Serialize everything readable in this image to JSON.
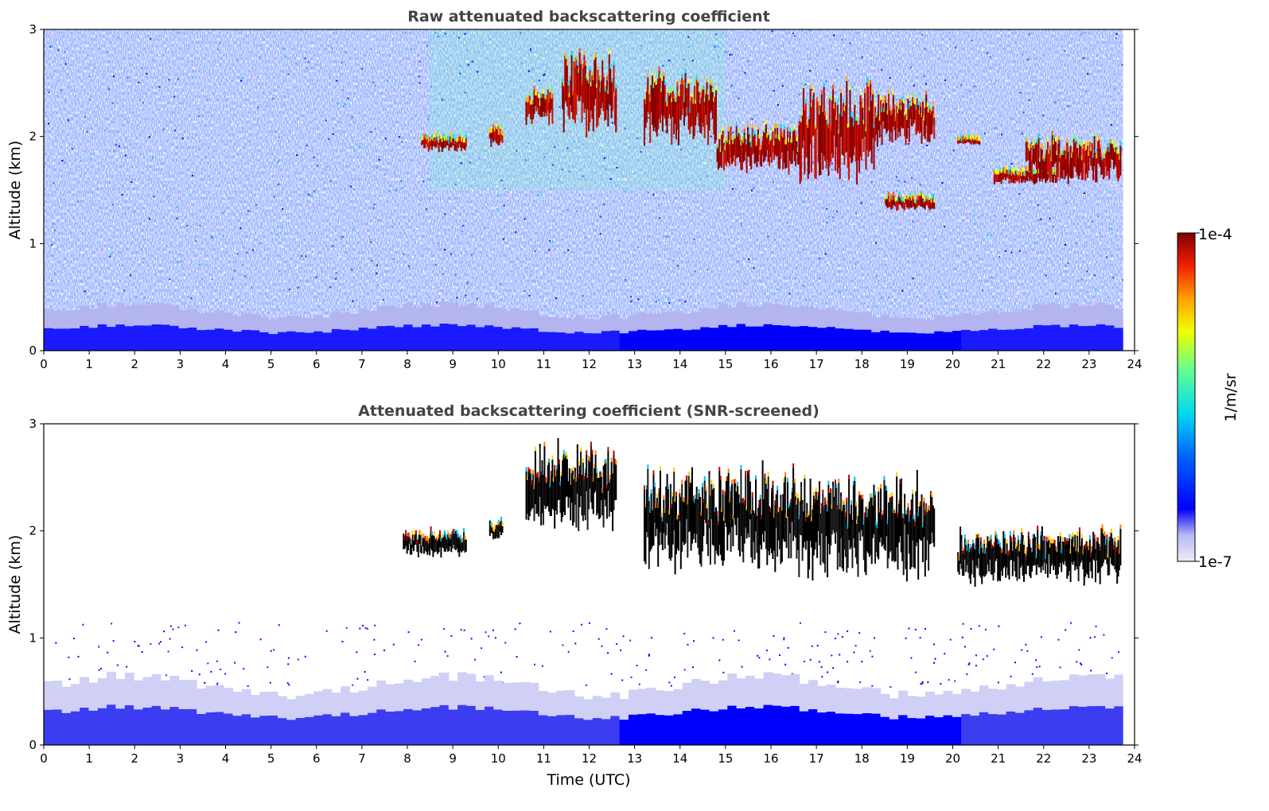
{
  "chart_data": [
    {
      "type": "heatmap",
      "title": "Raw attenuated backscattering coefficient",
      "ylabel": "Altitude (km)",
      "xlabel": "",
      "xlim": [
        0,
        24
      ],
      "ylim": [
        0,
        3
      ],
      "xticks": [
        "0",
        "1",
        "2",
        "3",
        "4",
        "5",
        "6",
        "7",
        "8",
        "9",
        "10",
        "11",
        "12",
        "13",
        "14",
        "15",
        "16",
        "17",
        "18",
        "19",
        "20",
        "21",
        "22",
        "23",
        "24"
      ],
      "yticks": [
        "0",
        "1",
        "2",
        "3"
      ],
      "data_end_time": 23.75,
      "features": [
        {
          "kind": "boundary_layer",
          "start": 0,
          "end": 23.75,
          "top_km": 0.4
        },
        {
          "kind": "cloud",
          "start": 8.3,
          "end": 9.3,
          "base_km": 1.85,
          "top_km": 2.0
        },
        {
          "kind": "cloud",
          "start": 9.8,
          "end": 10.1,
          "base_km": 1.9,
          "top_km": 2.1
        },
        {
          "kind": "cloud",
          "start": 10.6,
          "end": 11.2,
          "base_km": 2.1,
          "top_km": 2.45
        },
        {
          "kind": "cloud",
          "start": 11.4,
          "end": 12.6,
          "base_km": 2.0,
          "top_km": 2.8
        },
        {
          "kind": "cloud",
          "start": 13.2,
          "end": 14.8,
          "base_km": 1.9,
          "top_km": 2.6
        },
        {
          "kind": "cloud",
          "start": 14.8,
          "end": 16.6,
          "base_km": 1.65,
          "top_km": 2.1
        },
        {
          "kind": "cloud",
          "start": 16.6,
          "end": 18.3,
          "base_km": 1.55,
          "top_km": 2.5
        },
        {
          "kind": "cloud",
          "start": 18.3,
          "end": 19.6,
          "base_km": 1.9,
          "top_km": 2.4
        },
        {
          "kind": "cloud",
          "start": 18.5,
          "end": 19.6,
          "base_km": 1.3,
          "top_km": 1.45
        },
        {
          "kind": "cloud",
          "start": 20.1,
          "end": 20.6,
          "base_km": 1.92,
          "top_km": 1.98
        },
        {
          "kind": "cloud",
          "start": 20.9,
          "end": 22.3,
          "base_km": 1.55,
          "top_km": 1.7
        },
        {
          "kind": "cloud",
          "start": 21.6,
          "end": 23.7,
          "base_km": 1.55,
          "top_km": 2.0
        }
      ]
    },
    {
      "type": "heatmap",
      "title": "Attenuated backscattering coefficient (SNR-screened)",
      "ylabel": "Altitude (km)",
      "xlabel": "Time (UTC)",
      "xlim": [
        0,
        24
      ],
      "ylim": [
        0,
        3
      ],
      "xticks": [
        "0",
        "1",
        "2",
        "3",
        "4",
        "5",
        "6",
        "7",
        "8",
        "9",
        "10",
        "11",
        "12",
        "13",
        "14",
        "15",
        "16",
        "17",
        "18",
        "19",
        "20",
        "21",
        "22",
        "23",
        "24"
      ],
      "yticks": [
        "0",
        "1",
        "2",
        "3"
      ],
      "data_end_time": 23.75,
      "features": [
        {
          "kind": "boundary_layer",
          "start": 0,
          "end": 23.75,
          "top_km": 0.6
        },
        {
          "kind": "cloud",
          "start": 7.9,
          "end": 9.3,
          "base_km": 1.75,
          "top_km": 2.0
        },
        {
          "kind": "cloud",
          "start": 9.8,
          "end": 10.1,
          "base_km": 1.9,
          "top_km": 2.1
        },
        {
          "kind": "cloud",
          "start": 10.6,
          "end": 12.6,
          "base_km": 2.0,
          "top_km": 2.8
        },
        {
          "kind": "cloud",
          "start": 13.2,
          "end": 16.6,
          "base_km": 1.6,
          "top_km": 2.6
        },
        {
          "kind": "cloud",
          "start": 16.6,
          "end": 19.6,
          "base_km": 1.55,
          "top_km": 2.5
        },
        {
          "kind": "cloud",
          "start": 20.1,
          "end": 23.7,
          "base_km": 1.5,
          "top_km": 2.0
        }
      ]
    }
  ],
  "colorbar": {
    "label": "1/m/sr",
    "max_label": "1e-4",
    "min_label": "1e-7",
    "scale": "log",
    "colormap": "jet-like with pale lavender low end",
    "colors": [
      "#e8e8fa",
      "#c6c6f2",
      "#9a9aee",
      "#0000ff",
      "#0050ff",
      "#00a0ff",
      "#00e0f0",
      "#40ffb0",
      "#a0ff50",
      "#ffff00",
      "#ffb000",
      "#ff5000",
      "#e00000",
      "#800000"
    ]
  }
}
